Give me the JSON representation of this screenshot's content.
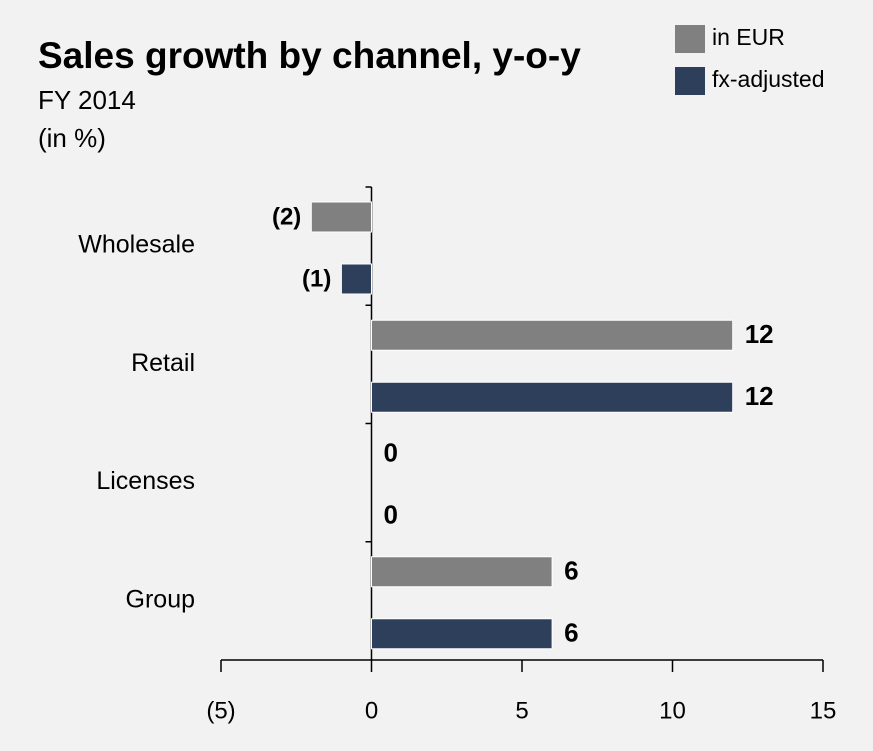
{
  "chart_data": {
    "type": "bar",
    "orientation": "horizontal",
    "title": "Sales growth by channel, y-o-y",
    "subtitle": "FY 2014",
    "unit_label": "(in %)",
    "categories": [
      "Wholesale",
      "Retail",
      "Licenses",
      "Group"
    ],
    "series": [
      {
        "name": "in EUR",
        "color": "#808080",
        "values": [
          -2,
          12,
          0,
          6
        ],
        "value_labels": [
          "(2)",
          "12",
          "0",
          "6"
        ]
      },
      {
        "name": "fx-adjusted",
        "color": "#2e3f5c",
        "values": [
          -1,
          12,
          0,
          6
        ],
        "value_labels": [
          "(1)",
          "12",
          "0",
          "6"
        ]
      }
    ],
    "xlim": [
      -5,
      15
    ],
    "xticks": [
      {
        "value": -5,
        "label": "(5)"
      },
      0,
      5,
      10,
      15
    ],
    "legend": "top-right"
  }
}
